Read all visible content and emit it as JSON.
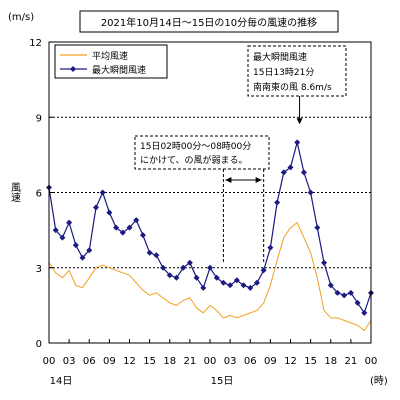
{
  "chart_data": {
    "type": "line",
    "title": "2021年10月14日〜15日の10分毎の風速の推移",
    "ylabel": "風速",
    "yunit": "(m/s)",
    "xunit": "(時)",
    "ylim": [
      0,
      12
    ],
    "yticks": [
      "0",
      "3",
      "6",
      "9",
      "12"
    ],
    "xlim": [
      0,
      48
    ],
    "xticks": [
      {
        "h": 0,
        "label": "00"
      },
      {
        "h": 3,
        "label": "03"
      },
      {
        "h": 6,
        "label": "06"
      },
      {
        "h": 9,
        "label": "09"
      },
      {
        "h": 12,
        "label": "12"
      },
      {
        "h": 15,
        "label": "15"
      },
      {
        "h": 18,
        "label": "18"
      },
      {
        "h": 21,
        "label": "21"
      },
      {
        "h": 24,
        "label": "00"
      },
      {
        "h": 27,
        "label": "03"
      },
      {
        "h": 30,
        "label": "06"
      },
      {
        "h": 33,
        "label": "09"
      },
      {
        "h": 36,
        "label": "12"
      },
      {
        "h": 39,
        "label": "15"
      },
      {
        "h": 42,
        "label": "18"
      },
      {
        "h": 45,
        "label": "21"
      },
      {
        "h": 48,
        "label": "00"
      }
    ],
    "day_labels": [
      {
        "h": 0,
        "label": "14日"
      },
      {
        "h": 24,
        "label": "15日"
      }
    ],
    "grid_y": [
      3,
      6,
      9
    ],
    "legend_placement": "top-left",
    "annotation_calm": [
      "15日02時00分～08時00分",
      "にかけて、の風が弱まる。"
    ],
    "annotation_calm_range": [
      26,
      32
    ],
    "annotation_peak": [
      "最大瞬間風速",
      "15日13時21分",
      "南南東の風 8.6m/s"
    ],
    "peak": {
      "h": 37.35,
      "value": 8.6
    },
    "series": [
      {
        "name": "平均風速",
        "color": "#f0a020",
        "x": [
          0,
          1,
          2,
          3,
          4,
          5,
          6,
          7,
          8,
          9,
          10,
          11,
          12,
          13,
          14,
          15,
          16,
          17,
          18,
          19,
          20,
          21,
          22,
          23,
          24,
          25,
          26,
          27,
          28,
          29,
          30,
          31,
          32,
          33,
          34,
          35,
          36,
          37,
          38,
          39,
          40,
          41,
          42,
          43,
          44,
          45,
          46,
          47,
          48
        ],
        "values": [
          3.2,
          2.8,
          2.6,
          2.9,
          2.3,
          2.2,
          2.6,
          3.0,
          3.1,
          3.0,
          2.9,
          2.8,
          2.7,
          2.4,
          2.1,
          1.9,
          2.0,
          1.8,
          1.6,
          1.5,
          1.7,
          1.8,
          1.4,
          1.2,
          1.5,
          1.3,
          1.0,
          1.1,
          1.0,
          1.1,
          1.2,
          1.3,
          1.6,
          2.3,
          3.3,
          4.2,
          4.6,
          4.8,
          4.2,
          3.6,
          2.6,
          1.3,
          1.0,
          1.0,
          0.9,
          0.8,
          0.7,
          0.5,
          0.9
        ]
      },
      {
        "name": "最大瞬間風速",
        "color": "#1a1a80",
        "x": [
          0,
          1,
          2,
          3,
          4,
          5,
          6,
          7,
          8,
          9,
          10,
          11,
          12,
          13,
          14,
          15,
          16,
          17,
          18,
          19,
          20,
          21,
          22,
          23,
          24,
          25,
          26,
          27,
          28,
          29,
          30,
          31,
          32,
          33,
          34,
          35,
          36,
          37,
          38,
          39,
          40,
          41,
          42,
          43,
          44,
          45,
          46,
          47,
          48
        ],
        "values": [
          6.2,
          4.5,
          4.2,
          4.8,
          3.9,
          3.4,
          3.7,
          5.4,
          6.0,
          5.2,
          4.6,
          4.4,
          4.6,
          4.9,
          4.3,
          3.6,
          3.5,
          3.0,
          2.7,
          2.6,
          3.0,
          3.2,
          2.6,
          2.2,
          3.0,
          2.6,
          2.4,
          2.3,
          2.5,
          2.3,
          2.2,
          2.4,
          2.9,
          3.8,
          5.6,
          6.8,
          7.0,
          8.0,
          6.8,
          6.0,
          4.6,
          3.2,
          2.3,
          2.0,
          1.9,
          2.0,
          1.6,
          1.2,
          2.0
        ]
      }
    ]
  }
}
